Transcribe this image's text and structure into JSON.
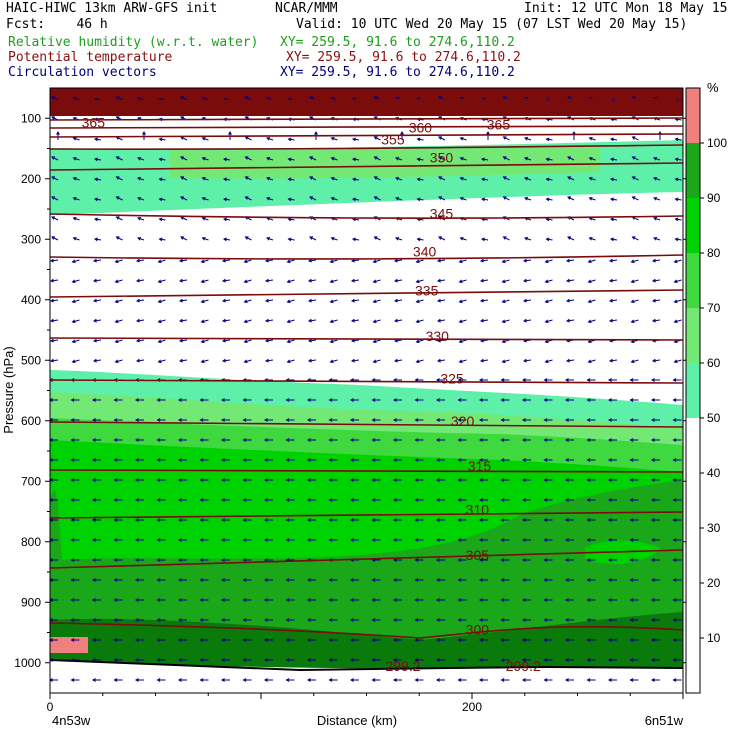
{
  "header": {
    "line1_left": "HAIC-HIWC 13km ARW-GFS init",
    "line1_mid": "NCAR/MMM",
    "line1_right": "Init: 12 UTC Mon 18 May 15",
    "line2_left": "Fcst:    46 h",
    "line2_right": "Valid: 10 UTC Wed 20 May 15 (07 LST Wed 20 May 15)",
    "field1_label": "Relative humidity (w.r.t. water)",
    "field1_xy": "XY= 259.5, 91.6 to 274.6,110.2",
    "field2_label": "Potential temperature",
    "field2_xy": "XY= 259.5, 91.6 to 274.6,110.2",
    "field3_label": "Circulation vectors",
    "field3_xy": "XY= 259.5, 91.6 to 274.6,110.2"
  },
  "colors": {
    "rh_10": "#f08080",
    "rh_20": "#ffffff",
    "rh_50": "#5ef0a8",
    "rh_60": "#74e874",
    "rh_70": "#3fd83f",
    "rh_80": "#00d200",
    "rh_90": "#1aa81a",
    "rh_100": "#0a7a0a",
    "theta": "#7a0c0c",
    "vectors": "#000080",
    "terrain": "#000000",
    "text_green": "#1e9e1e",
    "text_red": "#8b1010",
    "text_blue": "#00007a"
  },
  "chart_data": {
    "type": "cross-section",
    "xlabel": "Distance (km)",
    "ylabel": "Pressure (hPa)",
    "x_range": [
      0,
      300
    ],
    "y_range": [
      1050,
      50
    ],
    "x_ticks": [
      0,
      200
    ],
    "y_ticks": [
      100,
      200,
      300,
      400,
      500,
      600,
      700,
      800,
      900,
      1000
    ],
    "x_endpoint_labels": [
      "4n53w",
      "6n51w"
    ],
    "colorbar": {
      "unit": "%",
      "labels": [
        10,
        20,
        30,
        40,
        50,
        60,
        70,
        80,
        90,
        100
      ],
      "bins": [
        {
          "min": 0,
          "max": 50,
          "color": "#ffffff"
        },
        {
          "min": 50,
          "max": 60,
          "color": "#5ef0a8"
        },
        {
          "min": 60,
          "max": 70,
          "color": "#74e874"
        },
        {
          "min": 70,
          "max": 80,
          "color": "#3fd83f"
        },
        {
          "min": 80,
          "max": 90,
          "color": "#00d200"
        },
        {
          "min": 90,
          "max": 100,
          "color": "#1aa81a"
        },
        {
          "min": 100,
          "max": 110,
          "color": "#f08080"
        }
      ]
    },
    "theta_contours": [
      {
        "label": "365",
        "x": 15,
        "p": 112
      },
      {
        "label": "360",
        "x": 170,
        "p": 120
      },
      {
        "label": "365",
        "x": 207,
        "p": 115
      },
      {
        "label": "355",
        "x": 157,
        "p": 140
      },
      {
        "label": "350",
        "x": 180,
        "p": 170
      },
      {
        "label": "345",
        "x": 180,
        "p": 262
      },
      {
        "label": "340",
        "x": 172,
        "p": 325
      },
      {
        "label": "335",
        "x": 173,
        "p": 390
      },
      {
        "label": "330",
        "x": 178,
        "p": 465
      },
      {
        "label": "325",
        "x": 185,
        "p": 535
      },
      {
        "label": "320",
        "x": 190,
        "p": 605
      },
      {
        "label": "315",
        "x": 198,
        "p": 680
      },
      {
        "label": "310",
        "x": 197,
        "p": 752
      },
      {
        "label": "305",
        "x": 197,
        "p": 827
      },
      {
        "label": "300",
        "x": 197,
        "p": 950
      },
      {
        "label": "299.2",
        "x": 159,
        "p": 1010
      },
      {
        "label": "299.2",
        "x": 216,
        "p": 1010
      }
    ]
  }
}
